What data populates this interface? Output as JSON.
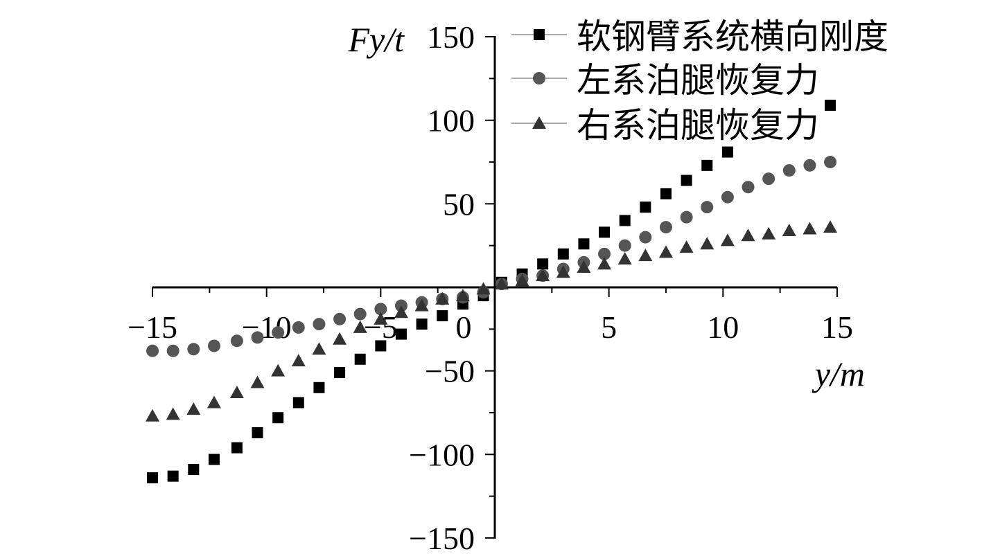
{
  "chart_data": {
    "type": "scatter",
    "title": "",
    "xlabel": "y/m",
    "ylabel": "Fy/t",
    "xlim": [
      -15,
      15
    ],
    "ylim": [
      -150,
      150
    ],
    "xticks": [
      "−15",
      "−10",
      "−5",
      "0",
      "5",
      "10",
      "15"
    ],
    "yticks": [
      "150",
      "100",
      "50",
      "−50",
      "−100",
      "−150"
    ],
    "grid": false,
    "legend_position": "top-right",
    "series": [
      {
        "name": "软钢臂系统横向刚度",
        "marker": "square",
        "color": "#000000",
        "x": [
          -15,
          -14.1,
          -13.2,
          -12.3,
          -11.3,
          -10.4,
          -9.5,
          -8.6,
          -7.7,
          -6.8,
          -5.9,
          -5.0,
          -4.1,
          -3.2,
          -2.3,
          -1.4,
          -0.5,
          0.3,
          1.2,
          2.1,
          3.0,
          3.9,
          4.8,
          5.7,
          6.6,
          7.5,
          8.4,
          9.3,
          10.2,
          14.7
        ],
        "y": [
          -114,
          -113,
          -109,
          -103,
          -96,
          -87,
          -78,
          -69,
          -60,
          -51,
          -43,
          -35,
          -28,
          -22,
          -17,
          -10,
          -5,
          3,
          8,
          14,
          20,
          26,
          33,
          40,
          48,
          56,
          64,
          73,
          81,
          109
        ]
      },
      {
        "name": "左系泊腿恢复力",
        "marker": "circle",
        "color": "#555555",
        "x": [
          -15,
          -14.1,
          -13.2,
          -12.3,
          -11.3,
          -10.4,
          -9.5,
          -8.6,
          -7.7,
          -6.8,
          -5.9,
          -5.0,
          -4.1,
          -3.2,
          -2.3,
          -1.4,
          -0.5,
          0.3,
          1.2,
          2.1,
          3.0,
          3.9,
          4.8,
          5.7,
          6.6,
          7.5,
          8.4,
          9.3,
          10.2,
          11.1,
          12.0,
          12.9,
          13.8,
          14.7
        ],
        "y": [
          -38,
          -38,
          -37,
          -35,
          -32,
          -30,
          -27,
          -24,
          -22,
          -19,
          -16,
          -13,
          -11,
          -9,
          -7,
          -6,
          -3,
          2,
          5,
          7,
          11,
          15,
          20,
          25,
          30,
          36,
          42,
          48,
          54,
          60,
          65,
          70,
          73,
          75
        ]
      },
      {
        "name": "右系泊腿恢复力",
        "marker": "triangle",
        "color": "#333333",
        "x": [
          -15,
          -14.1,
          -13.2,
          -12.3,
          -11.3,
          -10.4,
          -9.5,
          -8.6,
          -7.7,
          -6.8,
          -5.9,
          -5.0,
          -4.1,
          -3.2,
          -2.3,
          -1.4,
          -0.5,
          0.3,
          1.2,
          2.1,
          3.0,
          3.9,
          4.8,
          5.7,
          6.6,
          7.5,
          8.4,
          9.3,
          10.2,
          11.1,
          12.0,
          12.9,
          13.8,
          14.7
        ],
        "y": [
          -77,
          -76,
          -73,
          -69,
          -63,
          -57,
          -50,
          -44,
          -37,
          -31,
          -24,
          -19,
          -15,
          -11,
          -7,
          -5,
          -1,
          2,
          4,
          7,
          9,
          12,
          14,
          17,
          19,
          21,
          24,
          26,
          28,
          31,
          32,
          34,
          35,
          36
        ]
      }
    ]
  }
}
